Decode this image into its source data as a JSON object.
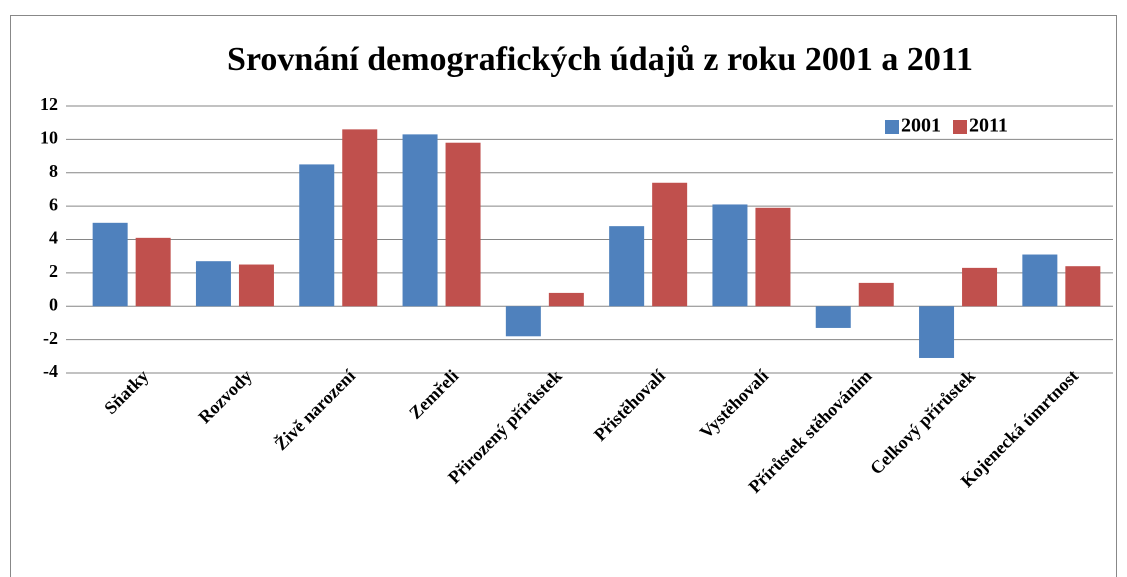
{
  "chart_data": {
    "type": "bar",
    "title": "Srovnání demografických údajů z roku 2001 a 2011",
    "categories": [
      "Sňatky",
      "Rozvody",
      "Živě narození",
      "Zemřeli",
      "Přirozený přírůstek",
      "Přistěhovalí",
      "Vystěhovalí",
      "Přírůstek stěhováním",
      "Celkový přírůstek",
      "Kojenecká úmrtnost"
    ],
    "series": [
      {
        "name": "2001",
        "color": "#4f81bd",
        "values": [
          5.0,
          2.7,
          8.5,
          10.3,
          -1.8,
          4.8,
          6.1,
          -1.3,
          -3.1,
          3.1
        ]
      },
      {
        "name": "2011",
        "color": "#c0504d",
        "values": [
          4.1,
          2.5,
          10.6,
          9.8,
          0.8,
          7.4,
          5.9,
          1.4,
          2.3,
          2.4
        ]
      }
    ],
    "ylim": [
      -4,
      12
    ],
    "yticks": [
      -4,
      -2,
      0,
      2,
      4,
      6,
      8,
      10,
      12
    ],
    "grid": true,
    "legend": "upper right"
  }
}
